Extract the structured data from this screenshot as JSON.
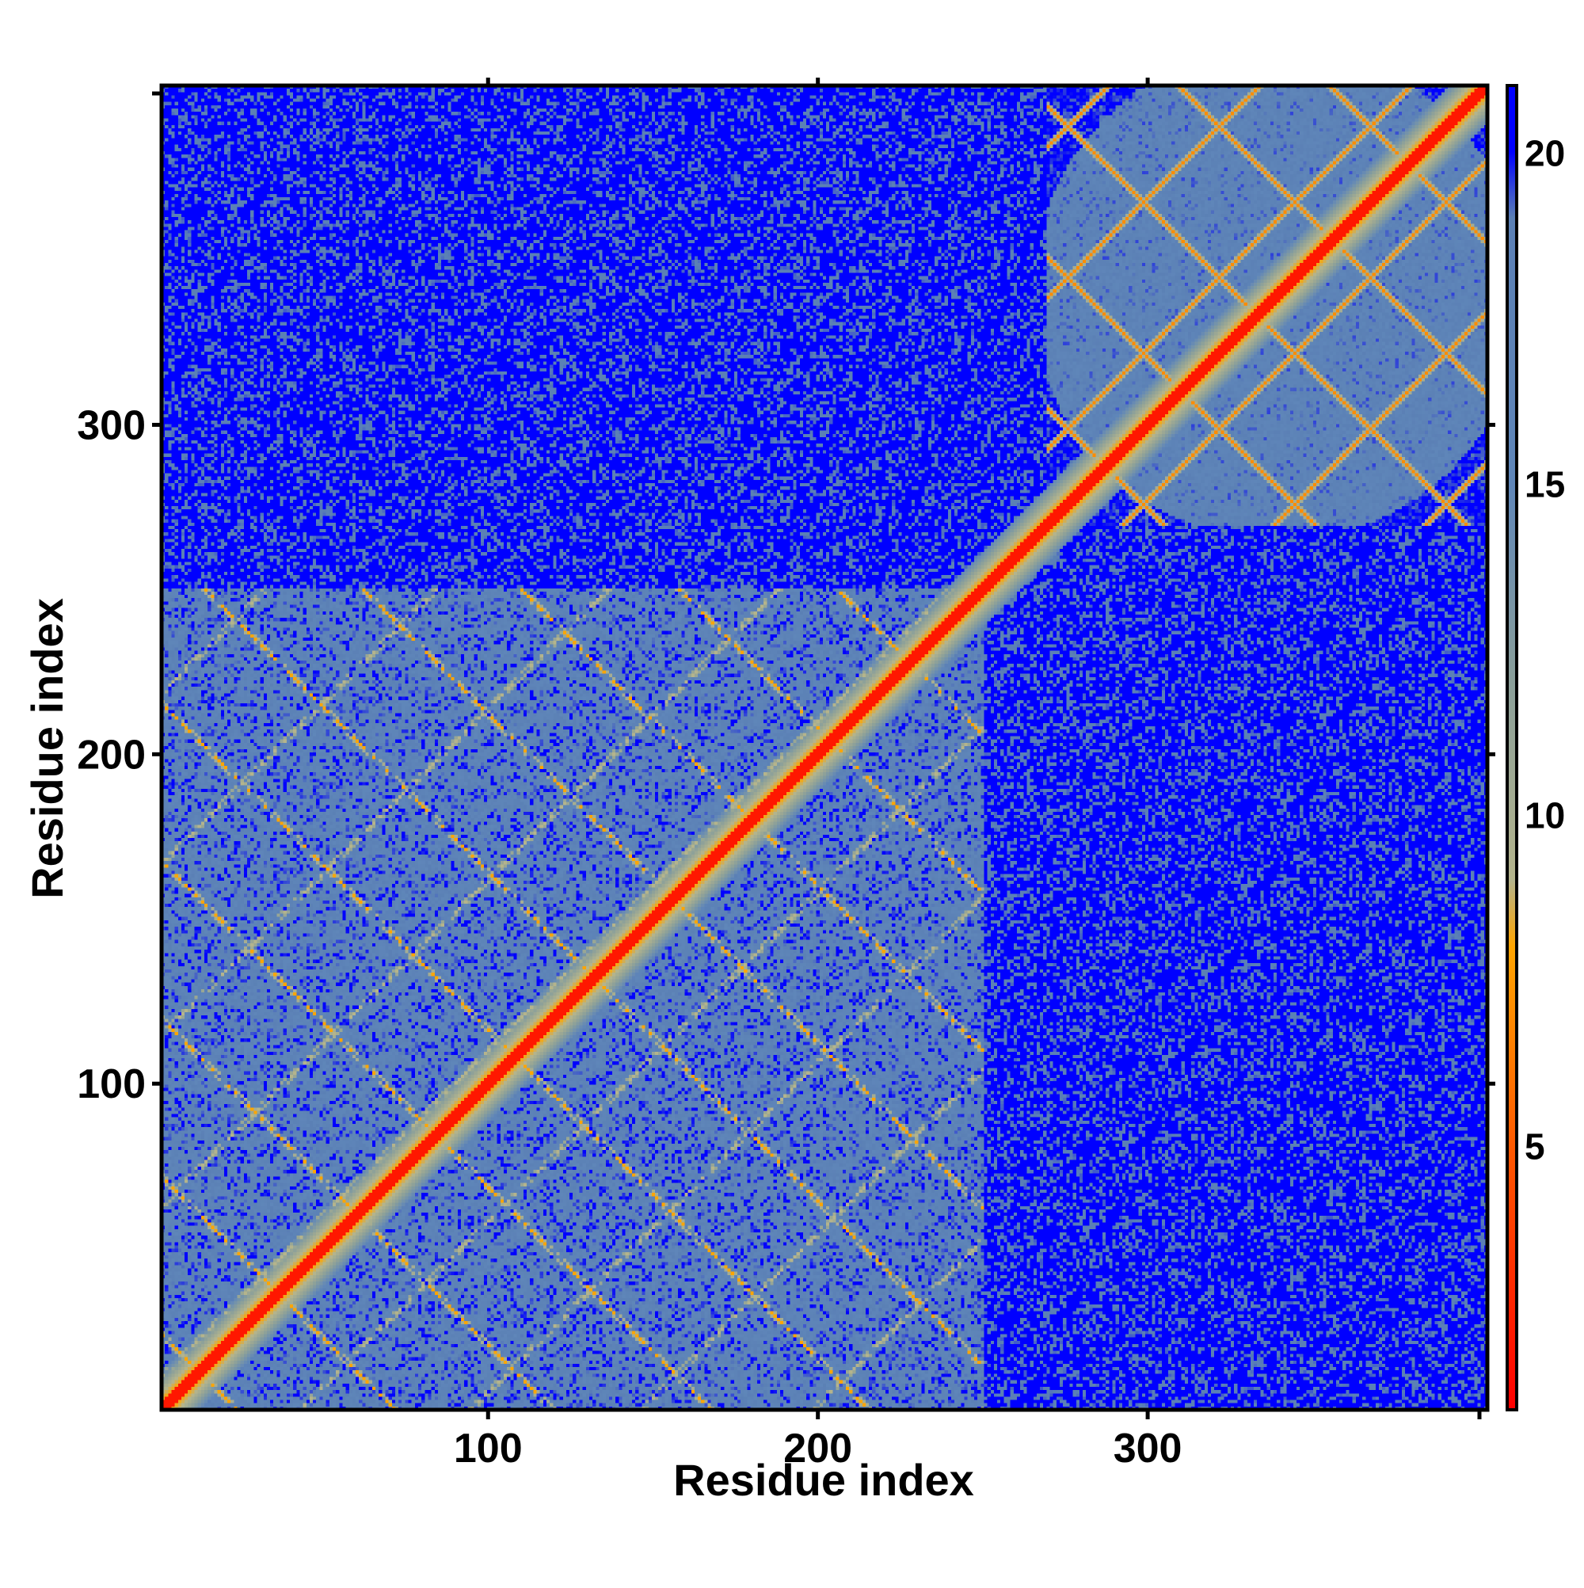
{
  "chart_data": {
    "type": "heatmap",
    "title": "",
    "xlabel": "Residue index",
    "ylabel": "Residue index",
    "xlim": [
      1,
      403
    ],
    "ylim": [
      1,
      403
    ],
    "x_ticks": [
      100,
      200,
      300
    ],
    "y_ticks": [
      100,
      200,
      300
    ],
    "colorbar": {
      "ticks": [
        5,
        10,
        15,
        20
      ],
      "range": [
        1,
        21
      ],
      "stops": [
        {
          "value": 1,
          "color": "#ff0000"
        },
        {
          "value": 5,
          "color": "#ff5a00"
        },
        {
          "value": 8,
          "color": "#ffa500"
        },
        {
          "value": 9,
          "color": "#b4b48c"
        },
        {
          "value": 12,
          "color": "#8a9f9a"
        },
        {
          "value": 15,
          "color": "#5f86b9"
        },
        {
          "value": 19,
          "color": "#5b80b5"
        },
        {
          "value": 20,
          "color": "#0000ff"
        },
        {
          "value": 21,
          "color": "#0000ff"
        }
      ]
    },
    "domains": [
      {
        "range": [
          1,
          250
        ]
      },
      {
        "range": [
          270,
          403
        ]
      }
    ]
  }
}
